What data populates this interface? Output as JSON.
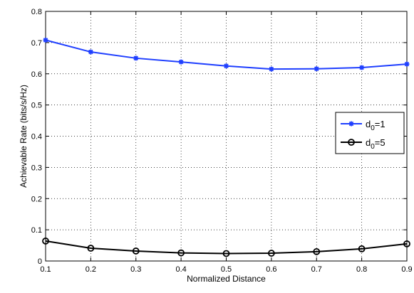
{
  "chart_data": {
    "type": "line",
    "title": "",
    "xlabel": "Normalized Distance",
    "ylabel": "Achievable Rate (bits/s/Hz)",
    "xlim": [
      0.1,
      0.9
    ],
    "ylim": [
      0,
      0.8
    ],
    "xticks": [
      "0.1",
      "0.2",
      "0.3",
      "0.4",
      "0.5",
      "0.6",
      "0.7",
      "0.8",
      "0.9"
    ],
    "yticks": [
      "0",
      "0.1",
      "0.2",
      "0.3",
      "0.4",
      "0.5",
      "0.6",
      "0.7",
      "0.8"
    ],
    "grid": true,
    "legend_position": "right",
    "x": [
      0.1,
      0.2,
      0.3,
      0.4,
      0.5,
      0.6,
      0.7,
      0.8,
      0.9
    ],
    "series": [
      {
        "name_base": "d",
        "name_sub": "0",
        "name_suffix": "=1",
        "color": "#1f3fff",
        "marker": "asterisk",
        "values": [
          0.708,
          0.67,
          0.65,
          0.638,
          0.625,
          0.615,
          0.616,
          0.62,
          0.631
        ]
      },
      {
        "name_base": "d",
        "name_sub": "0",
        "name_suffix": "=5",
        "color": "#000000",
        "marker": "circle",
        "values": [
          0.064,
          0.041,
          0.032,
          0.026,
          0.024,
          0.025,
          0.03,
          0.039,
          0.055
        ]
      }
    ]
  }
}
